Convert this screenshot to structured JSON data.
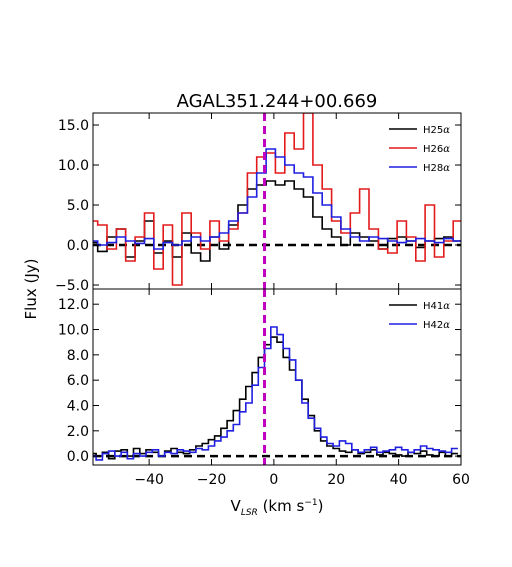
{
  "chart_data": {
    "type": "line",
    "title": "AGAL351.244+00.669",
    "ylabel": "Flux (Jy)",
    "xlabel": "V$_{LSR}$ (km s$^{-1}$)",
    "xlabel_display": {
      "main": "V",
      "sub": "LSR",
      "rest": " (km s",
      "sup": "−1",
      "close": ")"
    },
    "xlim": [
      -58,
      60
    ],
    "x_ticks": [
      -40,
      -20,
      0,
      20,
      40,
      60
    ],
    "x_tick_labels": [
      "−40",
      "−20",
      "0",
      "20",
      "40",
      "60"
    ],
    "vline_x": -3,
    "vline_color": "#bf00bf",
    "zero_line_color": "#000000",
    "panels": [
      {
        "ylim": [
          -5.5,
          16.5
        ],
        "y_ticks": [
          -5,
          0,
          5,
          10,
          15
        ],
        "y_tick_labels": [
          "−5.0",
          "0.0",
          "5.0",
          "10.0",
          "15.0"
        ],
        "legend": {
          "position": "top-right"
        },
        "series": [
          {
            "name": "H25α",
            "name_main": "H25",
            "name_sym": "α",
            "color": "#000000",
            "x": [
              -58,
              -55,
              -52,
              -49,
              -46,
              -43,
              -40,
              -37,
              -34,
              -31,
              -28,
              -25,
              -22,
              -19,
              -16,
              -13,
              -10,
              -7,
              -4,
              -1,
              2,
              5,
              8,
              11,
              14,
              17,
              20,
              23,
              26,
              29,
              32,
              35,
              38,
              41,
              44,
              47,
              50,
              53,
              56,
              59
            ],
            "y": [
              0.3,
              -0.8,
              1.0,
              2.0,
              -1.5,
              0.5,
              3.0,
              -1.0,
              0.5,
              -1.5,
              1.5,
              -1.0,
              -2.0,
              1.0,
              -0.5,
              2.5,
              5.0,
              7.0,
              7.5,
              8.0,
              7.5,
              8.0,
              7.0,
              6.0,
              3.5,
              2.0,
              1.0,
              0.0,
              1.5,
              1.0,
              0.5,
              -0.5,
              0.8,
              1.0,
              0.5,
              -0.3,
              0.5,
              0.8,
              1.0,
              0.5
            ]
          },
          {
            "name": "H26α",
            "name_main": "H26",
            "name_sym": "α",
            "color": "#e31a1c",
            "x": [
              -58,
              -55,
              -52,
              -49,
              -46,
              -43,
              -40,
              -37,
              -34,
              -31,
              -28,
              -25,
              -22,
              -19,
              -16,
              -13,
              -10,
              -7,
              -4,
              -1,
              2,
              5,
              8,
              11,
              14,
              17,
              20,
              23,
              26,
              29,
              32,
              35,
              38,
              41,
              44,
              47,
              50,
              53,
              56,
              59
            ],
            "y": [
              3.0,
              2.5,
              -0.5,
              2.0,
              -2.0,
              1.0,
              4.0,
              -3.0,
              2.5,
              -5.0,
              4.0,
              1.5,
              -0.5,
              3.0,
              0.5,
              2.0,
              4.0,
              9.0,
              11.0,
              11.5,
              9.0,
              14.0,
              12.0,
              16.5,
              10.0,
              7.0,
              3.0,
              1.5,
              4.0,
              7.0,
              2.0,
              -0.5,
              -1.0,
              3.0,
              1.0,
              -2.0,
              5.0,
              -1.5,
              0.5,
              3.0
            ]
          },
          {
            "name": "H28α",
            "name_main": "H28",
            "name_sym": "α",
            "color": "#1f1fe0",
            "x": [
              -58,
              -55,
              -52,
              -49,
              -46,
              -43,
              -40,
              -37,
              -34,
              -31,
              -28,
              -25,
              -22,
              -19,
              -16,
              -13,
              -10,
              -7,
              -4,
              -1,
              2,
              5,
              8,
              11,
              14,
              17,
              20,
              23,
              26,
              29,
              32,
              35,
              38,
              41,
              44,
              47,
              50,
              53,
              56,
              59
            ],
            "y": [
              0.5,
              0.0,
              0.3,
              1.0,
              0.5,
              0.2,
              0.8,
              -0.5,
              0.3,
              0.0,
              0.5,
              1.0,
              0.5,
              1.0,
              1.5,
              3.0,
              4.0,
              6.0,
              9.0,
              12.0,
              11.0,
              10.0,
              9.0,
              8.5,
              6.5,
              5.0,
              3.5,
              2.0,
              1.0,
              0.5,
              1.0,
              0.8,
              0.5,
              0.3,
              0.5,
              0.8,
              0.5,
              0.3,
              0.8,
              0.5
            ]
          }
        ]
      },
      {
        "ylim": [
          -0.7,
          13.2
        ],
        "y_ticks": [
          0,
          2,
          4,
          6,
          8,
          10,
          12
        ],
        "y_tick_labels": [
          "0.0",
          "2.0",
          "4.0",
          "6.0",
          "8.0",
          "10.0",
          "12.0"
        ],
        "legend": {
          "position": "top-right"
        },
        "series": [
          {
            "name": "H41α",
            "name_main": "H41",
            "name_sym": "α",
            "color": "#000000",
            "x": [
              -58,
              -56,
              -54,
              -52,
              -50,
              -48,
              -46,
              -44,
              -42,
              -40,
              -38,
              -36,
              -34,
              -32,
              -30,
              -28,
              -26,
              -24,
              -22,
              -20,
              -18,
              -16,
              -14,
              -12,
              -10,
              -8,
              -6,
              -4,
              -2,
              0,
              2,
              4,
              6,
              8,
              10,
              12,
              14,
              16,
              18,
              20,
              22,
              24,
              26,
              28,
              30,
              32,
              34,
              36,
              38,
              40,
              42,
              44,
              46,
              48,
              50,
              52,
              54,
              56,
              58
            ],
            "y": [
              0.2,
              0.0,
              0.3,
              -0.2,
              0.4,
              0.5,
              0.0,
              0.6,
              0.2,
              0.5,
              0.3,
              0.0,
              0.4,
              0.6,
              0.3,
              0.2,
              0.5,
              0.8,
              1.0,
              1.3,
              1.6,
              2.2,
              2.8,
              3.6,
              4.5,
              5.5,
              6.6,
              7.8,
              8.8,
              9.4,
              9.0,
              7.8,
              6.8,
              6.0,
              4.5,
              3.2,
              2.0,
              1.2,
              0.8,
              0.6,
              0.4,
              0.3,
              0.5,
              0.2,
              0.3,
              0.5,
              0.1,
              0.3,
              0.2,
              0.1,
              0.0,
              0.3,
              0.2,
              0.4,
              0.1,
              0.0,
              0.3,
              0.0,
              0.2
            ]
          },
          {
            "name": "H42α",
            "name_main": "H42",
            "name_sym": "α",
            "color": "#1f1fe0",
            "x": [
              -58,
              -56,
              -54,
              -52,
              -50,
              -48,
              -46,
              -44,
              -42,
              -40,
              -38,
              -36,
              -34,
              -32,
              -30,
              -28,
              -26,
              -24,
              -22,
              -20,
              -18,
              -16,
              -14,
              -12,
              -10,
              -8,
              -6,
              -4,
              -2,
              0,
              2,
              4,
              6,
              8,
              10,
              12,
              14,
              16,
              18,
              20,
              22,
              24,
              26,
              28,
              30,
              32,
              34,
              36,
              38,
              40,
              42,
              44,
              46,
              48,
              50,
              52,
              54,
              56,
              58
            ],
            "y": [
              0.0,
              -0.3,
              0.2,
              0.4,
              0.0,
              0.3,
              -0.2,
              0.2,
              0.0,
              0.3,
              0.5,
              0.0,
              0.3,
              0.2,
              0.5,
              0.4,
              0.3,
              0.6,
              0.5,
              0.8,
              1.2,
              1.5,
              2.0,
              2.5,
              3.5,
              4.2,
              5.6,
              7.0,
              8.5,
              10.2,
              9.6,
              8.5,
              7.6,
              6.0,
              4.2,
              3.0,
              2.2,
              1.5,
              1.0,
              0.8,
              1.2,
              1.0,
              0.5,
              0.3,
              0.5,
              0.7,
              0.3,
              0.4,
              0.5,
              0.7,
              0.5,
              0.3,
              0.5,
              0.8,
              0.6,
              0.5,
              0.4,
              0.3,
              0.6
            ]
          }
        ]
      }
    ]
  }
}
